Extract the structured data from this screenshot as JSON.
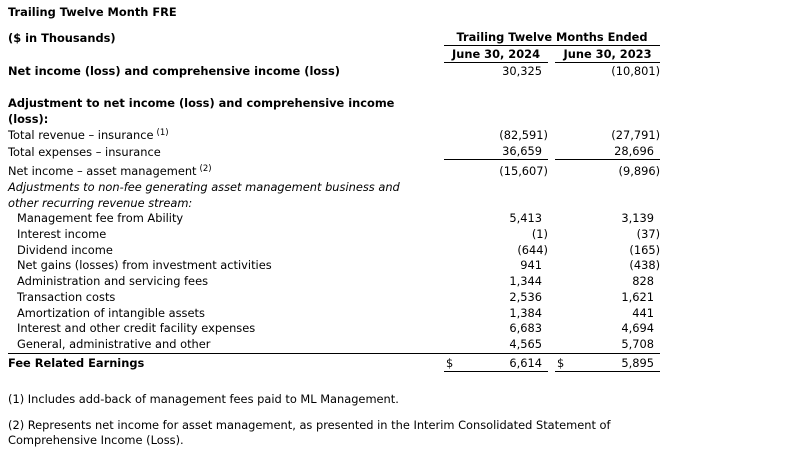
{
  "title": "Trailing Twelve Month FRE",
  "units": "($ in Thousands)",
  "header": {
    "group": "Trailing Twelve Months Ended",
    "columns": [
      "June 30, 2024",
      "June 30, 2023"
    ]
  },
  "net_income": {
    "label": "Net income (loss) and comprehensive income (loss)",
    "values": [
      "30,325",
      "(10,801)"
    ]
  },
  "adjustments": {
    "heading": "Adjustment to net income (loss) and comprehensive income (loss):",
    "rows": [
      {
        "label": "Total revenue – insurance",
        "note": "(1)",
        "values": [
          "(82,591)",
          "(27,791)"
        ]
      },
      {
        "label": "Total expenses – insurance",
        "values": [
          "36,659",
          "28,696"
        ]
      },
      {
        "label": "Net income – asset management",
        "note": "(2)",
        "values": [
          "(15,607)",
          "(9,896)"
        ]
      }
    ]
  },
  "asset_management": {
    "heading": "Adjustments to non-fee generating asset management business and other recurring revenue stream:",
    "items": [
      {
        "label": "Management fee from Ability",
        "values": [
          "5,413",
          "3,139"
        ]
      },
      {
        "label": "Interest income",
        "values": [
          "(1)",
          "(37)"
        ]
      },
      {
        "label": "Dividend income",
        "values": [
          "(644)",
          "(165)"
        ]
      },
      {
        "label": "Net gains (losses) from investment activities",
        "values": [
          "941",
          "(438)"
        ]
      },
      {
        "label": "Administration and servicing fees",
        "values": [
          "1,344",
          "828"
        ]
      },
      {
        "label": "Transaction costs",
        "values": [
          "2,536",
          "1,621"
        ]
      },
      {
        "label": "Amortization of intangible assets",
        "values": [
          "1,384",
          "441"
        ]
      },
      {
        "label": "Interest and other credit facility expenses",
        "values": [
          "6,683",
          "4,694"
        ]
      },
      {
        "label": "General, administrative and other",
        "values": [
          "4,565",
          "5,708"
        ]
      }
    ]
  },
  "fee_related_earnings": {
    "label": "Fee Related Earnings",
    "currency": [
      "$",
      "$"
    ],
    "values": [
      "6,614",
      "5,895"
    ]
  },
  "footnotes": [
    "(1) Includes add-back of management fees paid to ML Management.",
    "(2) Represents net income for asset management, as presented in the Interim Consolidated Statement of Comprehensive Income (Loss)."
  ]
}
